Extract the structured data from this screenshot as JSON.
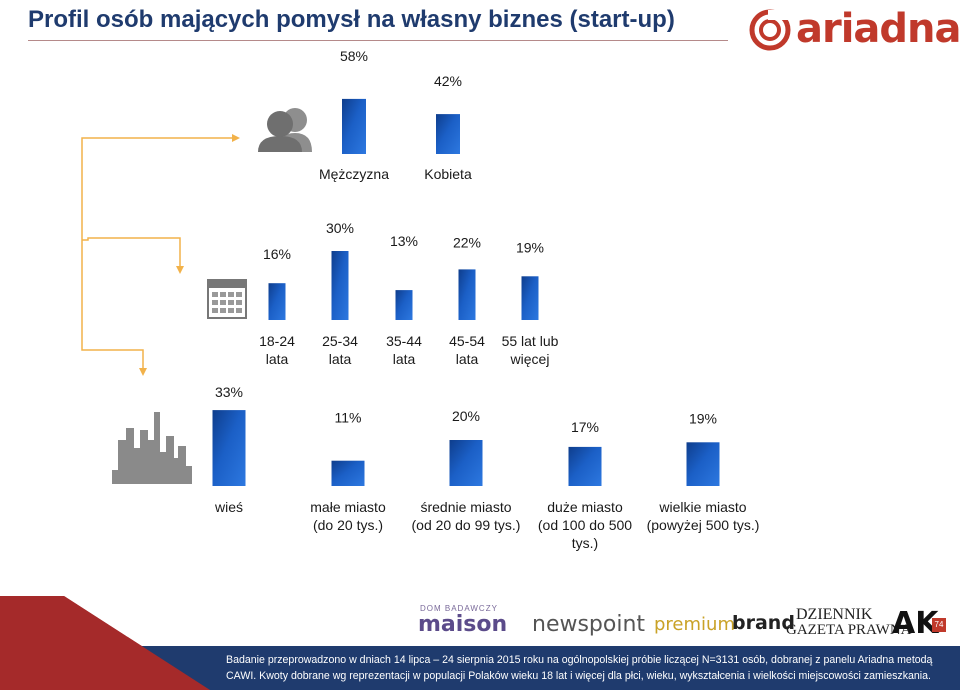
{
  "header": {
    "title": "Profil osób mających pomysł na własny biznes (start-up)",
    "logo_text": "ariadna"
  },
  "chart_data": [
    {
      "type": "bar",
      "categories": [
        "Mężczyzna",
        "Kobieta"
      ],
      "values": [
        58,
        42
      ],
      "value_labels": [
        "58%",
        "42%"
      ],
      "title": "",
      "xlabel": "",
      "ylabel": "",
      "ylim": [
        0,
        100
      ],
      "grid": false,
      "color": "#1b5fc6"
    },
    {
      "type": "bar",
      "categories": [
        "18-24 lata",
        "25-34 lata",
        "35-44 lata",
        "45-54 lata",
        "55 lat lub więcej"
      ],
      "category_lines": [
        [
          "18-24",
          "lata"
        ],
        [
          "25-34",
          "lata"
        ],
        [
          "35-44",
          "lata"
        ],
        [
          "45-54",
          "lata"
        ],
        [
          "55 lat lub",
          "więcej"
        ]
      ],
      "values": [
        16,
        30,
        13,
        22,
        19
      ],
      "value_labels": [
        "16%",
        "30%",
        "13%",
        "22%",
        "19%"
      ],
      "title": "",
      "xlabel": "",
      "ylabel": "",
      "ylim": [
        0,
        100
      ],
      "grid": false,
      "color": "#1b5fc6"
    },
    {
      "type": "bar",
      "categories": [
        "wieś",
        "małe miasto (do 20 tys.)",
        "średnie miasto (od 20 do 99 tys.)",
        "duże miasto (od 100 do 500 tys.)",
        "wielkie miasto (powyżej 500 tys.)"
      ],
      "category_lines": [
        [
          "wieś"
        ],
        [
          "małe miasto",
          "(do 20 tys.)"
        ],
        [
          "średnie miasto",
          "(od 20 do 99 tys.)"
        ],
        [
          "duże miasto",
          "(od 100 do 500",
          "tys.)"
        ],
        [
          "wielkie miasto",
          "(powyżej 500 tys.)"
        ]
      ],
      "values": [
        33,
        11,
        20,
        17,
        19
      ],
      "value_labels": [
        "33%",
        "11%",
        "20%",
        "17%",
        "19%"
      ],
      "title": "",
      "xlabel": "",
      "ylabel": "",
      "ylim": [
        0,
        100
      ],
      "grid": false,
      "color": "#1b5fc6"
    }
  ],
  "icons": {
    "gender": "people-icon",
    "age": "calendar-icon",
    "place": "city-skyline-icon",
    "connector": "arrow-connector-icon"
  },
  "sponsors": {
    "maison_top": "DOM BADAWCZY",
    "maison": "maison",
    "newspoint": "newspoint",
    "premium": "premium",
    "brand": "brand",
    "dgp_line1": "DZIENNIK",
    "dgp_line2": "GAZETA PRAWNA",
    "ak": "AK",
    "ak_badge": "74"
  },
  "footer": {
    "line1": "Badanie przeprowadzono w dniach 14 lipca – 24 sierpnia 2015 roku na ogólnopolskiej próbie liczącej N=3131 osób, dobranej z panelu Ariadna metodą",
    "line2": "CAWI. Kwoty dobrane wg reprezentacji w populacji Polaków wieku 18 lat i więcej dla płci, wieku, wykształcenia i wielkości miejscowości zamieszkania."
  },
  "colors": {
    "bar": "#1b5fc6",
    "bar_dark": "#0e3d8c",
    "title": "#1f3b6e",
    "footer_bg": "#1f3b6e",
    "wedge": "#a52a2a",
    "connector": "#f2b24a",
    "logo": "#c0392b"
  }
}
